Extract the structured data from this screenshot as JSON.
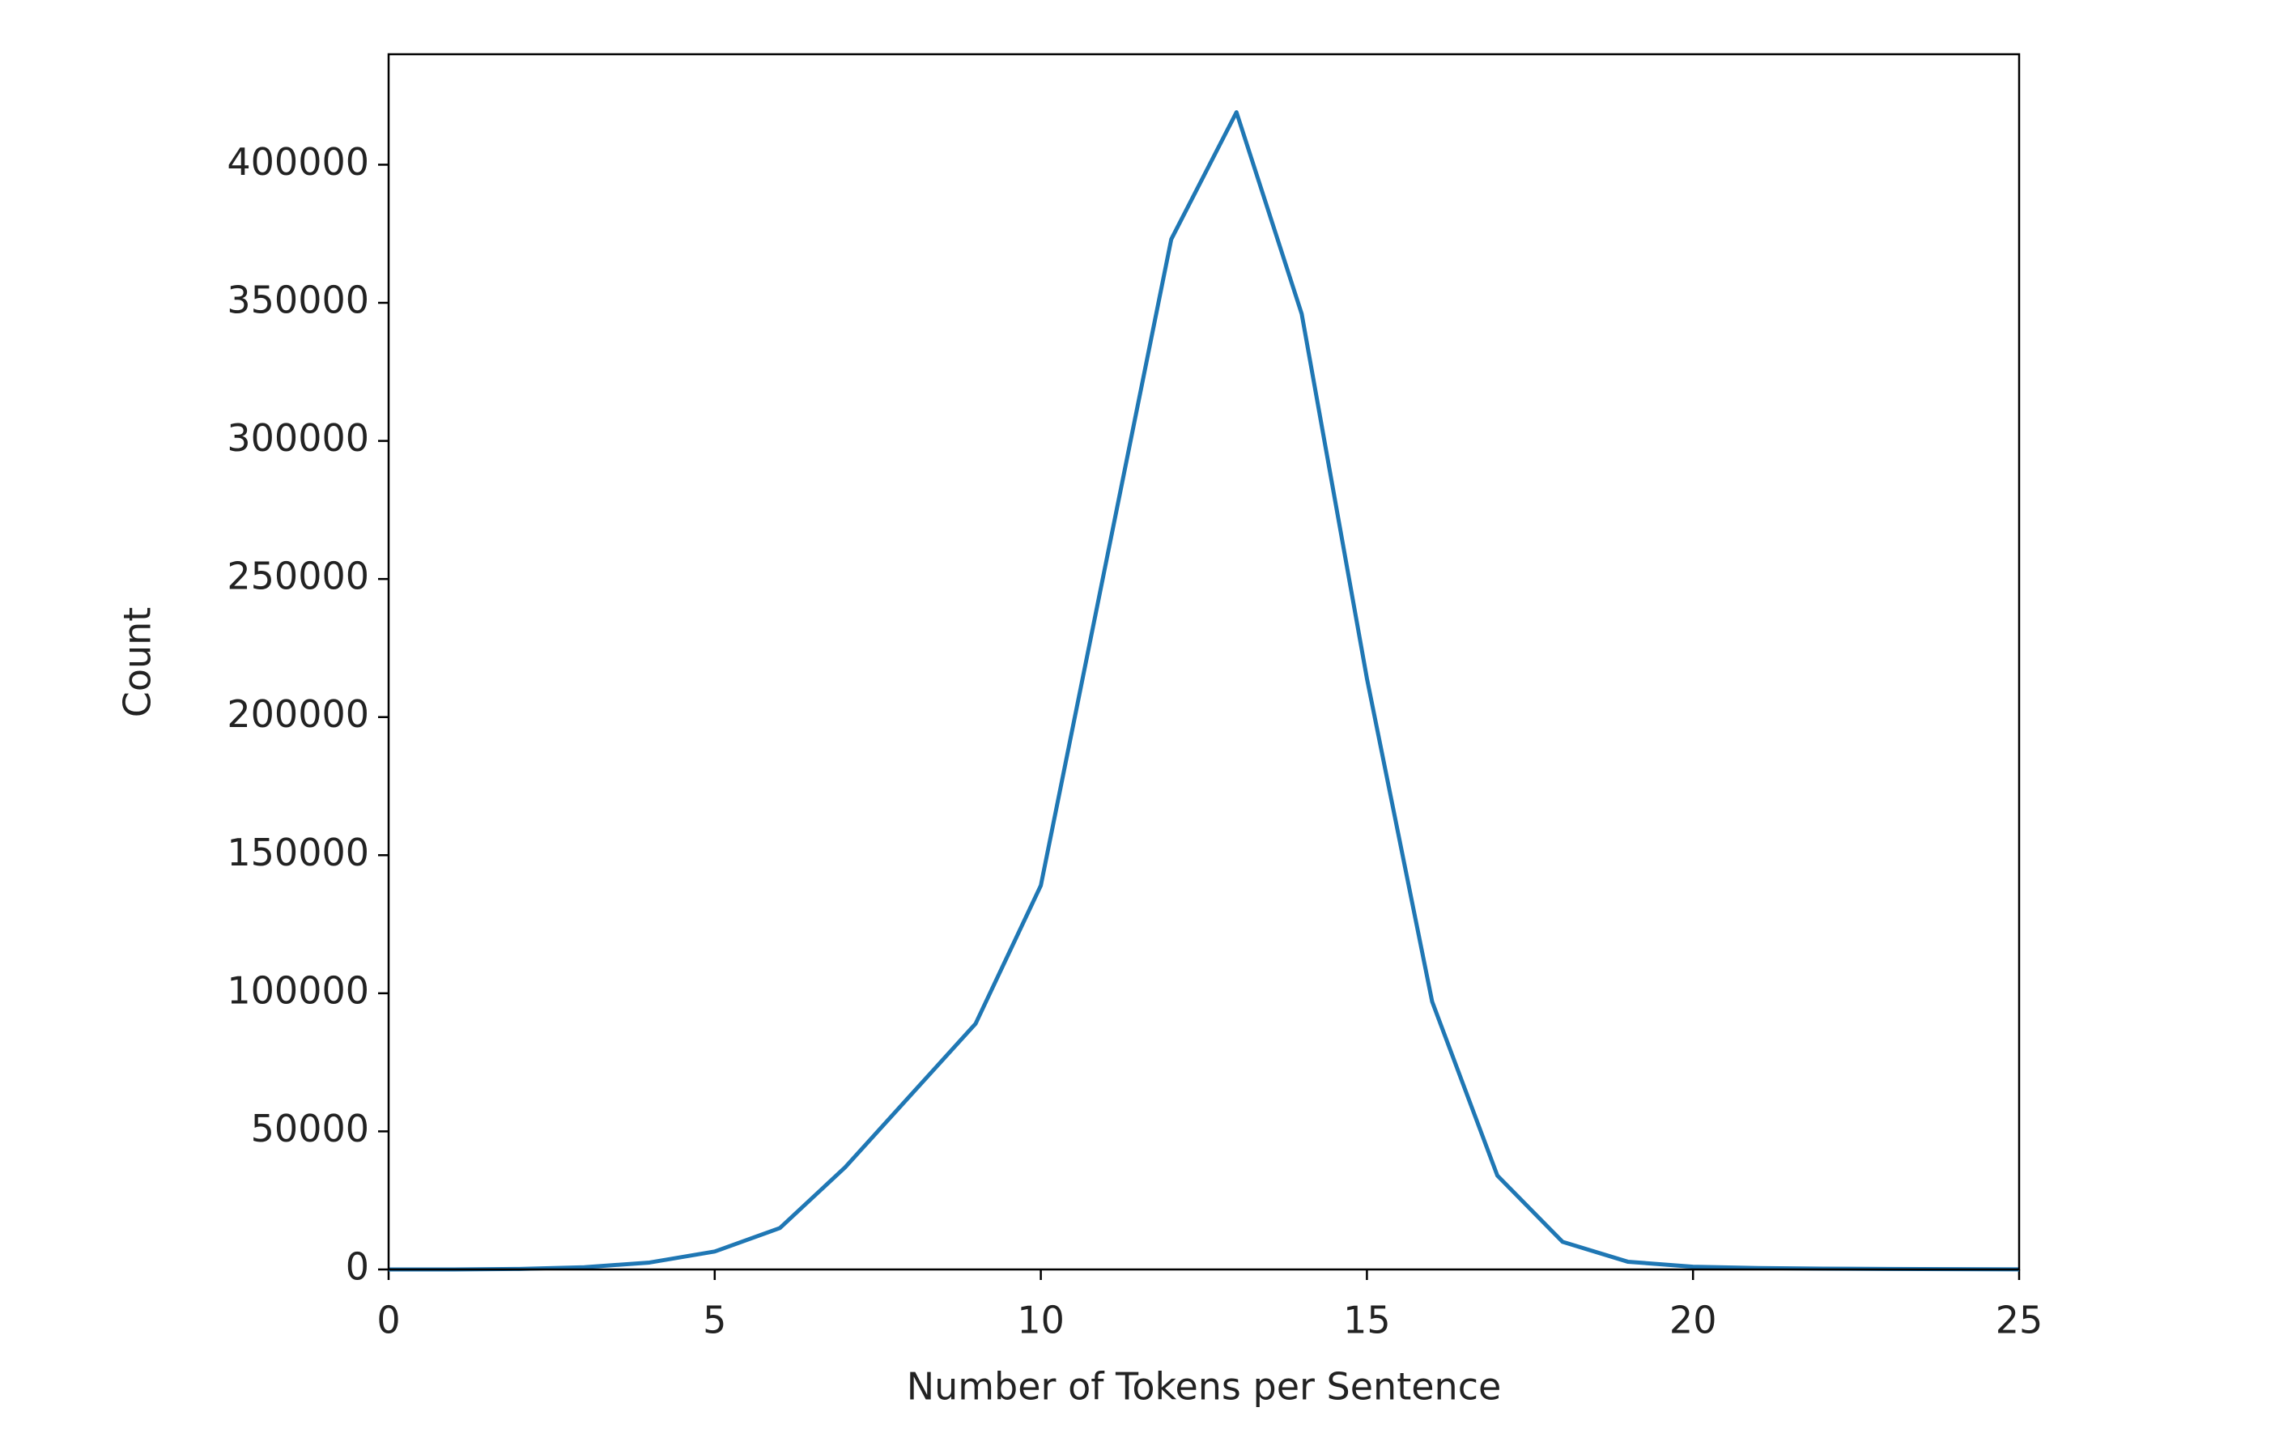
{
  "chart_data": {
    "type": "line",
    "x_label": "Number of Tokens per Sentence",
    "y_label": "Count",
    "x": [
      0,
      1,
      2,
      3,
      4,
      5,
      6,
      7,
      8,
      9,
      10,
      11,
      12,
      13,
      14,
      15,
      16,
      17,
      18,
      19,
      20,
      21,
      22,
      23,
      24,
      25
    ],
    "values": [
      0,
      0,
      200,
      800,
      2500,
      6500,
      15000,
      37000,
      63000,
      89000,
      139000,
      256000,
      373000,
      419000,
      346000,
      214000,
      97000,
      34000,
      10000,
      2800,
      1000,
      500,
      300,
      200,
      100,
      50
    ],
    "color": "#1f77b4",
    "xlim": [
      0,
      25
    ],
    "xticks": [
      0,
      5,
      10,
      15,
      20,
      25
    ],
    "ylim": [
      0,
      440000
    ],
    "yticks": [
      0,
      50000,
      100000,
      150000,
      200000,
      250000,
      300000,
      350000,
      400000
    ],
    "grid": false
  }
}
